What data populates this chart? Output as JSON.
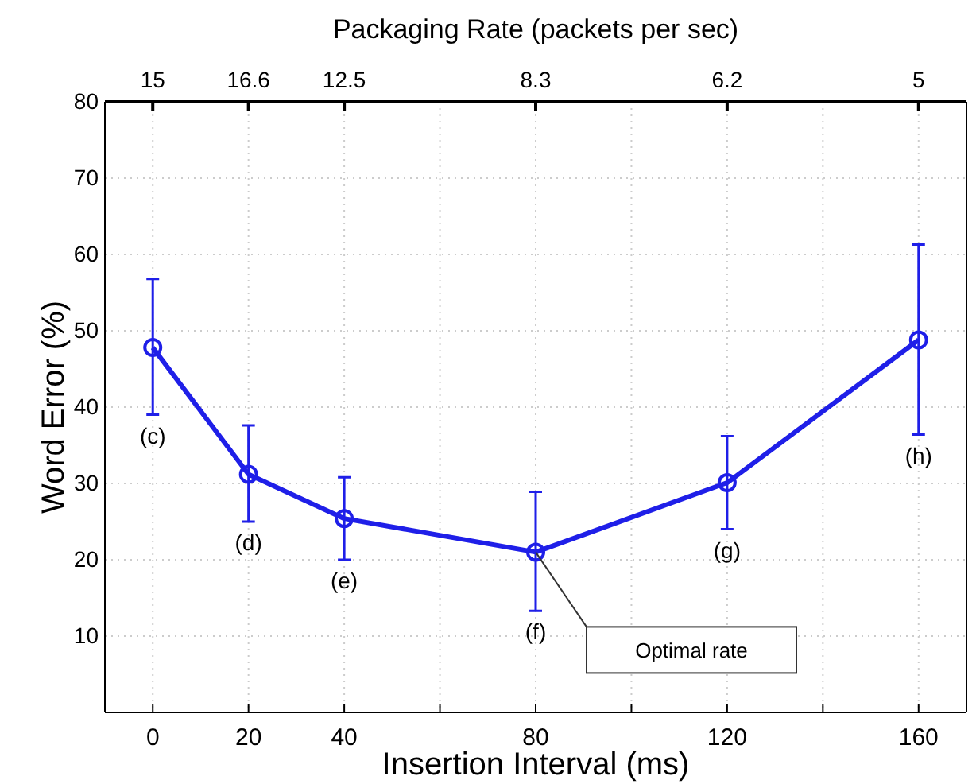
{
  "chart_data": {
    "type": "line",
    "xlabel": "Insertion Interval (ms)",
    "ylabel": "Word Error (%)",
    "x2label": "Packaging Rate (packets per sec)",
    "x": [
      0,
      20,
      40,
      80,
      120,
      160
    ],
    "series": [
      {
        "color": "#1f1fe8",
        "values": [
          47.8,
          31.2,
          25.4,
          21,
          30.1,
          48.8
        ],
        "errors": [
          [
            39,
            56.8
          ],
          [
            25,
            37.6
          ],
          [
            20,
            30.8
          ],
          [
            13.3,
            28.9
          ],
          [
            24,
            36.2
          ],
          [
            36.4,
            61.3
          ]
        ]
      }
    ],
    "xlim": [
      -10,
      170
    ],
    "ylim": [
      0,
      80
    ],
    "xticks": [
      0,
      20,
      40,
      {
        "value": 60,
        "label": null
      },
      80,
      {
        "value": 100,
        "label": null
      },
      120,
      {
        "value": 140,
        "label": null
      },
      160
    ],
    "yticks": [
      10,
      20,
      30,
      40,
      50,
      60,
      70,
      80
    ],
    "grid": true,
    "marker": "circle",
    "line_style": "solid",
    "annotations": [
      "15",
      "16.6",
      "12.5",
      "8.3",
      "6.2",
      "5",
      "(c)",
      "(d)",
      "(e)",
      "(f)",
      "(g)",
      "(h)",
      "Optimal rate"
    ]
  }
}
